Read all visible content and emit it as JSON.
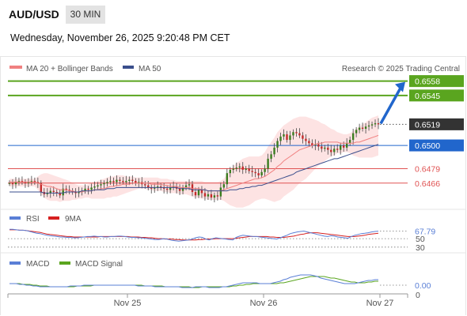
{
  "header": {
    "symbol": "AUD/USD",
    "timeframe": "30 MIN",
    "datetime": "Wednesday, November 26, 2025 9:20:48 PM CET"
  },
  "colors": {
    "green": "#5aa51f",
    "blue": "#2166cc",
    "red": "#e05353",
    "ma20": "#f08080",
    "ma50": "#3a4e8c",
    "band": "#fde0e0",
    "dark": "#333333",
    "rsi": "#5a7fd6",
    "rsi_ma": "#d62020",
    "macd": "#5a7fd6",
    "macd_signal": "#5aa51f"
  },
  "chart_data": [
    {
      "type": "candlestick",
      "title": "AUD/USD",
      "legend": [
        {
          "name": "MA 20 + Bollinger Bands",
          "color": "#f08080"
        },
        {
          "name": "MA 50",
          "color": "#3a4e8c"
        }
      ],
      "legend_position": "top-left",
      "watermark": "Research © 2025 Trading Central",
      "x_ticks": [
        "Nov 25",
        "Nov 26",
        "Nov 27"
      ],
      "ylim": [
        0.64445,
        0.6562
      ],
      "levels": [
        {
          "value": 0.6558,
          "label": "0.6558",
          "color": "#5aa51f",
          "kind": "resistance"
        },
        {
          "value": 0.6545,
          "label": "0.6545",
          "color": "#5aa51f",
          "kind": "resistance"
        },
        {
          "value": 0.6519,
          "label": "0.6519",
          "color": "#333333",
          "kind": "last-price"
        },
        {
          "value": 0.65,
          "label": "0.6500",
          "color": "#2166cc",
          "kind": "pivot"
        },
        {
          "value": 0.6479,
          "label": "0.6479",
          "color": "#e05353",
          "kind": "support"
        },
        {
          "value": 0.6466,
          "label": "0.6466",
          "color": "#e05353",
          "kind": "support"
        }
      ],
      "close_series": [
        0.6466,
        0.6465,
        0.6467,
        0.6468,
        0.6467,
        0.6466,
        0.6467,
        0.6468,
        0.6467,
        0.6466,
        0.6458,
        0.6456,
        0.6457,
        0.6459,
        0.6458,
        0.6457,
        0.6455,
        0.6461,
        0.646,
        0.6459,
        0.6458,
        0.6457,
        0.6458,
        0.6459,
        0.6461,
        0.646,
        0.6462,
        0.6463,
        0.6464,
        0.6465,
        0.6466,
        0.6467,
        0.6468,
        0.6467,
        0.6469,
        0.6468,
        0.6467,
        0.6468,
        0.6469,
        0.6468,
        0.6466,
        0.6467,
        0.6465,
        0.6464,
        0.6462,
        0.6461,
        0.6462,
        0.6463,
        0.6462,
        0.6461,
        0.646,
        0.6462,
        0.6463,
        0.6461,
        0.6459,
        0.6462,
        0.6464,
        0.6465,
        0.6458,
        0.6455,
        0.646,
        0.6457,
        0.6454,
        0.6456,
        0.6453,
        0.6455,
        0.6454,
        0.6462,
        0.6465,
        0.6475,
        0.6478,
        0.6479,
        0.648,
        0.6481,
        0.6478,
        0.6479,
        0.6477,
        0.6476,
        0.6475,
        0.6473,
        0.6476,
        0.6479,
        0.6488,
        0.6492,
        0.6498,
        0.6504,
        0.6508,
        0.651,
        0.6505,
        0.6509,
        0.6512,
        0.6511,
        0.6509,
        0.6506,
        0.6504,
        0.6502,
        0.65,
        0.6501,
        0.6499,
        0.6497,
        0.6498,
        0.6496,
        0.6494,
        0.6497,
        0.6496,
        0.65,
        0.6498,
        0.6502,
        0.6505,
        0.6511,
        0.6514,
        0.6516,
        0.6515,
        0.6517,
        0.6518,
        0.6519,
        0.652,
        0.6519
      ],
      "ma20": [
        0.6467,
        0.6467,
        0.6467,
        0.6467,
        0.6467,
        0.6467,
        0.6467,
        0.6467,
        0.6467,
        0.6466,
        0.6465,
        0.6464,
        0.6463,
        0.6463,
        0.6462,
        0.6461,
        0.646,
        0.646,
        0.646,
        0.6459,
        0.6459,
        0.6458,
        0.6458,
        0.6458,
        0.6459,
        0.6459,
        0.6459,
        0.646,
        0.646,
        0.6461,
        0.6461,
        0.6462,
        0.6463,
        0.6463,
        0.6464,
        0.6464,
        0.6465,
        0.6465,
        0.6465,
        0.6466,
        0.6466,
        0.6466,
        0.6466,
        0.6466,
        0.6466,
        0.6465,
        0.6465,
        0.6465,
        0.6465,
        0.6464,
        0.6464,
        0.6463,
        0.6463,
        0.6463,
        0.6462,
        0.6462,
        0.6462,
        0.6462,
        0.6461,
        0.6461,
        0.6461,
        0.646,
        0.646,
        0.6459,
        0.6459,
        0.6459,
        0.6459,
        0.6459,
        0.646,
        0.6461,
        0.6462,
        0.6463,
        0.6464,
        0.6465,
        0.6466,
        0.6467,
        0.6468,
        0.6469,
        0.647,
        0.647,
        0.6471,
        0.6472,
        0.6474,
        0.6476,
        0.6478,
        0.6481,
        0.6483,
        0.6486,
        0.6488,
        0.649,
        0.6492,
        0.6494,
        0.6496,
        0.6497,
        0.6498,
        0.6499,
        0.65,
        0.6501,
        0.6502,
        0.6502,
        0.6503,
        0.6503,
        0.6503,
        0.6503,
        0.6503,
        0.6502,
        0.6502,
        0.6502,
        0.6502,
        0.6502,
        0.6503,
        0.6503,
        0.6504,
        0.6505,
        0.6506,
        0.6507,
        0.6508,
        0.6509
      ],
      "bb_upper": [
        0.647,
        0.647,
        0.647,
        0.647,
        0.647,
        0.647,
        0.647,
        0.647,
        0.647,
        0.6472,
        0.6474,
        0.6475,
        0.6475,
        0.6474,
        0.6473,
        0.6472,
        0.6471,
        0.647,
        0.6469,
        0.6468,
        0.6466,
        0.6465,
        0.6464,
        0.6464,
        0.6464,
        0.6465,
        0.6466,
        0.6467,
        0.6468,
        0.6469,
        0.647,
        0.6471,
        0.6472,
        0.6472,
        0.6473,
        0.6473,
        0.6473,
        0.6472,
        0.6472,
        0.6472,
        0.6471,
        0.6471,
        0.6471,
        0.6471,
        0.6471,
        0.6471,
        0.6471,
        0.6471,
        0.647,
        0.647,
        0.647,
        0.6469,
        0.6469,
        0.6468,
        0.6468,
        0.6468,
        0.6468,
        0.6468,
        0.6468,
        0.6468,
        0.6468,
        0.6468,
        0.6467,
        0.6467,
        0.6467,
        0.6467,
        0.6467,
        0.6468,
        0.647,
        0.6474,
        0.6478,
        0.6481,
        0.6484,
        0.6486,
        0.6488,
        0.6489,
        0.649,
        0.649,
        0.649,
        0.649,
        0.6491,
        0.6494,
        0.6499,
        0.6503,
        0.6507,
        0.6512,
        0.6515,
        0.6518,
        0.652,
        0.6522,
        0.6524,
        0.6525,
        0.6526,
        0.6526,
        0.6526,
        0.6525,
        0.6524,
        0.6523,
        0.6522,
        0.652,
        0.6519,
        0.6517,
        0.6515,
        0.6514,
        0.6512,
        0.6511,
        0.651,
        0.651,
        0.6511,
        0.6513,
        0.6515,
        0.6517,
        0.6519,
        0.6521,
        0.6523,
        0.6525,
        0.6526,
        0.6527
      ],
      "bb_lower": [
        0.6463,
        0.6463,
        0.6463,
        0.6463,
        0.6463,
        0.6463,
        0.6463,
        0.6463,
        0.6463,
        0.646,
        0.6456,
        0.6453,
        0.6451,
        0.645,
        0.645,
        0.645,
        0.6449,
        0.645,
        0.645,
        0.645,
        0.6451,
        0.6451,
        0.6452,
        0.6452,
        0.6453,
        0.6453,
        0.6452,
        0.6452,
        0.6452,
        0.6452,
        0.6452,
        0.6453,
        0.6453,
        0.6454,
        0.6454,
        0.6455,
        0.6456,
        0.6457,
        0.6458,
        0.6459,
        0.646,
        0.6461,
        0.6461,
        0.6461,
        0.646,
        0.646,
        0.6459,
        0.6459,
        0.6459,
        0.6458,
        0.6458,
        0.6457,
        0.6457,
        0.6457,
        0.6456,
        0.6456,
        0.6456,
        0.6455,
        0.6454,
        0.6453,
        0.6453,
        0.6452,
        0.6452,
        0.6451,
        0.6451,
        0.6451,
        0.6451,
        0.6451,
        0.645,
        0.6448,
        0.6446,
        0.6445,
        0.6444,
        0.6444,
        0.6444,
        0.6445,
        0.6446,
        0.6448,
        0.645,
        0.6451,
        0.6452,
        0.6452,
        0.6451,
        0.645,
        0.6449,
        0.645,
        0.6451,
        0.6454,
        0.6456,
        0.6458,
        0.646,
        0.6463,
        0.6466,
        0.6468,
        0.647,
        0.6473,
        0.6476,
        0.6479,
        0.6482,
        0.6484,
        0.6486,
        0.6488,
        0.649,
        0.6491,
        0.6493,
        0.6493,
        0.6494,
        0.6494,
        0.6493,
        0.6491,
        0.649,
        0.6489,
        0.6489,
        0.6489,
        0.6489,
        0.6489,
        0.649,
        0.6491
      ],
      "ma50": [
        0.6458,
        0.6458,
        0.6458,
        0.6458,
        0.6458,
        0.6458,
        0.6458,
        0.6458,
        0.6458,
        0.6458,
        0.6458,
        0.6457,
        0.6457,
        0.6457,
        0.6457,
        0.6457,
        0.6457,
        0.6457,
        0.6458,
        0.6458,
        0.6458,
        0.6458,
        0.6458,
        0.6459,
        0.6459,
        0.6459,
        0.6459,
        0.646,
        0.646,
        0.646,
        0.646,
        0.6461,
        0.6461,
        0.6461,
        0.6462,
        0.6462,
        0.6462,
        0.6462,
        0.6462,
        0.6462,
        0.6462,
        0.6462,
        0.6462,
        0.6462,
        0.6462,
        0.6462,
        0.6462,
        0.6462,
        0.6462,
        0.6462,
        0.6462,
        0.6462,
        0.6462,
        0.6462,
        0.6461,
        0.6461,
        0.6461,
        0.6461,
        0.646,
        0.646,
        0.646,
        0.646,
        0.646,
        0.6459,
        0.6459,
        0.6459,
        0.6459,
        0.6459,
        0.6459,
        0.6459,
        0.646,
        0.646,
        0.646,
        0.6461,
        0.6461,
        0.6462,
        0.6462,
        0.6463,
        0.6463,
        0.6464,
        0.6464,
        0.6465,
        0.6466,
        0.6467,
        0.6468,
        0.6469,
        0.647,
        0.6471,
        0.6472,
        0.6473,
        0.6474,
        0.6476,
        0.6477,
        0.6478,
        0.6479,
        0.648,
        0.6481,
        0.6482,
        0.6483,
        0.6484,
        0.6485,
        0.6486,
        0.6487,
        0.6488,
        0.6488,
        0.6489,
        0.649,
        0.6491,
        0.6492,
        0.6493,
        0.6494,
        0.6495,
        0.6496,
        0.6497,
        0.6498,
        0.6499,
        0.65,
        0.6501
      ],
      "forecast_arrow": {
        "from": 0.6519,
        "to": 0.6558
      }
    },
    {
      "type": "line",
      "legend": [
        {
          "name": "RSI",
          "color": "#5a7fd6"
        },
        {
          "name": "9MA",
          "color": "#d62020"
        }
      ],
      "ylim": [
        24,
        82
      ],
      "y_ticks": [
        50,
        30
      ],
      "last_value_label": "67.79",
      "rsi": [
        72,
        72,
        71,
        70,
        70,
        69,
        67,
        65,
        63,
        62,
        60,
        58,
        57,
        56,
        55,
        54,
        54,
        53,
        53,
        52,
        52,
        53,
        54,
        55,
        55,
        56,
        55,
        55,
        54,
        54,
        55,
        55,
        56,
        56,
        55,
        54,
        53,
        53,
        52,
        52,
        51,
        50,
        49,
        48,
        48,
        49,
        50,
        48,
        46,
        45,
        44,
        45,
        46,
        47,
        49,
        52,
        54,
        53,
        49,
        47,
        50,
        52,
        51,
        50,
        49,
        48,
        47,
        53,
        56,
        58,
        57,
        56,
        55,
        55,
        54,
        53,
        52,
        51,
        50,
        49,
        52,
        55,
        58,
        62,
        64,
        66,
        67,
        68,
        66,
        64,
        62,
        60,
        58,
        56,
        55,
        57,
        56,
        54,
        53,
        52,
        51,
        55,
        58,
        60,
        62,
        63,
        64,
        66,
        67,
        67.79
      ],
      "ma9": [
        71,
        71,
        71,
        70,
        70,
        69,
        68,
        67,
        66,
        65,
        63,
        61,
        60,
        59,
        58,
        57,
        56,
        55,
        55,
        54,
        54,
        54,
        54,
        54,
        54,
        54,
        54,
        55,
        55,
        55,
        55,
        55,
        55,
        55,
        55,
        55,
        54,
        54,
        54,
        53,
        53,
        52,
        52,
        51,
        50,
        50,
        49,
        49,
        49,
        48,
        48,
        47,
        47,
        47,
        47,
        47,
        48,
        48,
        49,
        49,
        49,
        50,
        50,
        50,
        50,
        50,
        50,
        51,
        52,
        53,
        54,
        55,
        55,
        55,
        55,
        55,
        55,
        54,
        54,
        53,
        53,
        53,
        54,
        55,
        56,
        58,
        60,
        61,
        63,
        64,
        64,
        64,
        63,
        62,
        61,
        60,
        59,
        58,
        57,
        56,
        55,
        55,
        55,
        56,
        57,
        58,
        60,
        61,
        62,
        63
      ],
      "dotted_levels": [
        67.79,
        50,
        30
      ]
    },
    {
      "type": "line",
      "legend": [
        {
          "name": "MACD",
          "color": "#5a7fd6"
        },
        {
          "name": "MACD Signal",
          "color": "#5aa51f"
        }
      ],
      "ylim": [
        -0.0008,
        0.0019
      ],
      "y_ticks": [
        0
      ],
      "last_value_label": "0.00",
      "macd": [
        0.0002,
        0.0002,
        0.0002,
        0.0001,
        0.0001,
        0.0,
        0.0,
        -0.0001,
        -0.0001,
        -0.0002,
        -0.0002,
        -0.0002,
        -0.0002,
        -0.0002,
        -0.0002,
        -0.0002,
        -0.0002,
        -0.0002,
        -0.0001,
        -0.0001,
        -0.0001,
        -0.0001,
        0.0,
        0.0,
        0.0,
        0.0,
        0.0,
        0.0,
        0.0,
        0.0,
        0.0,
        0.0,
        0.0,
        0.0,
        0.0,
        0.0,
        0.0,
        0.0,
        -0.0001,
        -0.0001,
        -0.0001,
        -0.0001,
        -0.0001,
        -0.0002,
        -0.0002,
        -0.0002,
        -0.0002,
        -0.0002,
        -0.0002,
        -0.0002,
        -0.0002,
        -0.0003,
        -0.0003,
        -0.0003,
        -0.0003,
        -0.0002,
        -0.0002,
        -0.0002,
        -0.0002,
        -0.0003,
        -0.0003,
        -0.0003,
        -0.0003,
        -0.0002,
        -0.0002,
        -0.0001,
        0.0,
        0.0001,
        0.0002,
        0.0003,
        0.0003,
        0.0003,
        0.0003,
        0.0003,
        0.0002,
        0.0002,
        0.0002,
        0.0002,
        0.0003,
        0.0004,
        0.0005,
        0.0007,
        0.0008,
        0.001,
        0.0011,
        0.0012,
        0.0013,
        0.0013,
        0.0013,
        0.0013,
        0.0012,
        0.0011,
        0.0009,
        0.0008,
        0.0007,
        0.0006,
        0.0005,
        0.0004,
        0.0003,
        0.0002,
        0.0002,
        0.0002,
        0.0002,
        0.0003,
        0.0004,
        0.0005,
        0.0006,
        0.0006,
        0.0007,
        0.0007
      ],
      "signal": [
        0.0002,
        0.0002,
        0.0002,
        0.0002,
        0.0001,
        0.0001,
        0.0001,
        0.0,
        0.0,
        -0.0001,
        -0.0001,
        -0.0001,
        -0.0002,
        -0.0002,
        -0.0002,
        -0.0002,
        -0.0002,
        -0.0002,
        -0.0002,
        -0.0002,
        -0.0001,
        -0.0001,
        -0.0001,
        -0.0001,
        -0.0001,
        0.0,
        0.0,
        0.0,
        0.0,
        0.0,
        0.0,
        0.0,
        0.0,
        0.0,
        0.0,
        0.0,
        0.0,
        0.0,
        0.0,
        0.0,
        -0.0001,
        -0.0001,
        -0.0001,
        -0.0001,
        -0.0001,
        -0.0001,
        -0.0002,
        -0.0002,
        -0.0002,
        -0.0002,
        -0.0002,
        -0.0002,
        -0.0002,
        -0.0002,
        -0.0003,
        -0.0003,
        -0.0003,
        -0.0002,
        -0.0002,
        -0.0002,
        -0.0002,
        -0.0002,
        -0.0002,
        -0.0002,
        -0.0002,
        -0.0002,
        -0.0001,
        -0.0001,
        0.0,
        0.0,
        0.0001,
        0.0001,
        0.0002,
        0.0002,
        0.0002,
        0.0002,
        0.0002,
        0.0002,
        0.0002,
        0.0002,
        0.0003,
        0.0003,
        0.0004,
        0.0005,
        0.0006,
        0.0007,
        0.0008,
        0.0009,
        0.001,
        0.0011,
        0.0011,
        0.0011,
        0.0011,
        0.0011,
        0.001,
        0.0009,
        0.0009,
        0.0008,
        0.0007,
        0.0006,
        0.0005,
        0.0004,
        0.0004,
        0.0003,
        0.0003,
        0.0003,
        0.0004,
        0.0004,
        0.0005,
        0.0005
      ],
      "dotted_levels": [
        0.0
      ]
    }
  ]
}
